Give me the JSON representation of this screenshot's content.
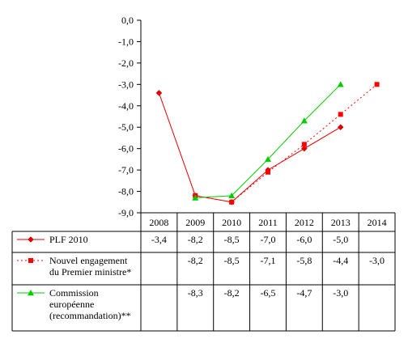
{
  "chart_data": {
    "type": "line",
    "categories": [
      "2008",
      "2009",
      "2010",
      "2011",
      "2012",
      "2013",
      "2014"
    ],
    "y_ticks": [
      "0,0",
      "-1,0",
      "-2,0",
      "-3,0",
      "-4,0",
      "-5,0",
      "-6,0",
      "-7,0",
      "-8,0",
      "-9,0"
    ],
    "ylim": [
      -9,
      0
    ],
    "grid": false,
    "legend": "data-table-below",
    "series": [
      {
        "name": "PLF 2010",
        "label_lines": [
          "PLF 2010"
        ],
        "color": "#e00000",
        "line_style": "solid",
        "marker": "diamond",
        "values": [
          -3.4,
          -8.2,
          -8.5,
          -7.0,
          -6.0,
          -5.0,
          null
        ],
        "labels": [
          "-3,4",
          "-8,2",
          "-8,5",
          "-7,0",
          "-6,0",
          "-5,0",
          ""
        ]
      },
      {
        "name": "Nouvel engagement du Premier ministre*",
        "label_lines": [
          "Nouvel engagement",
          "du Premier ministre*"
        ],
        "color": "#ff0000",
        "line_style": "dotted",
        "marker": "square",
        "values": [
          null,
          -8.2,
          -8.5,
          -7.1,
          -5.8,
          -4.4,
          -3.0
        ],
        "labels": [
          "",
          "-8,2",
          "-8,5",
          "-7,1",
          "-5,8",
          "-4,4",
          "-3,0"
        ]
      },
      {
        "name": "Commission européenne (recommandation)**",
        "label_lines": [
          "Commission",
          "européenne",
          "(recommandation)**"
        ],
        "color": "#00cc00",
        "line_style": "solid",
        "marker": "triangle",
        "values": [
          null,
          -8.3,
          -8.2,
          -6.5,
          -4.7,
          -3.0,
          null
        ],
        "labels": [
          "",
          "-8,3",
          "-8,2",
          "-6,5",
          "-4,7",
          "-3,0",
          ""
        ]
      }
    ]
  }
}
